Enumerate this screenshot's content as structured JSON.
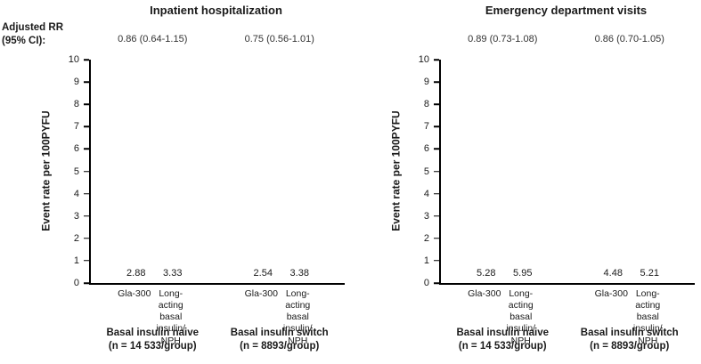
{
  "rr_header": "Adjusted RR\n(95% CI):",
  "colors": {
    "series": [
      "#4FC2E8",
      "#00587F"
    ],
    "axis": "#000000"
  },
  "chart_data": [
    {
      "type": "bar",
      "title": "Inpatient hospitalization",
      "ylabel": "Event rate per 100PYFU",
      "ylim": [
        0,
        10
      ],
      "yticks": [
        0,
        1,
        2,
        3,
        4,
        5,
        6,
        7,
        8,
        9,
        10
      ],
      "series": [
        "Gla-300",
        "Long-acting\nbasal insulin/\nNPH"
      ],
      "rr": [
        "0.86 (0.64-1.15)",
        "0.75 (0.56-1.01)"
      ],
      "groups": [
        {
          "name": "Basal insulin naive",
          "n_label": "(n = 14 533/group)",
          "values": [
            2.88,
            3.33
          ]
        },
        {
          "name": "Basal insulin switch",
          "n_label": "(n = 8893/group)",
          "values": [
            2.54,
            3.38
          ]
        }
      ]
    },
    {
      "type": "bar",
      "title": "Emergency department visits",
      "ylabel": "Event rate per 100PYFU",
      "ylim": [
        0,
        10
      ],
      "yticks": [
        0,
        1,
        2,
        3,
        4,
        5,
        6,
        7,
        8,
        9,
        10
      ],
      "series": [
        "Gla-300",
        "Long-acting\nbasal insulin/\nNPH"
      ],
      "rr": [
        "0.89 (0.73-1.08)",
        "0.86 (0.70-1.05)"
      ],
      "groups": [
        {
          "name": "Basal insulin naive",
          "n_label": "(n = 14 533/group)",
          "values": [
            5.28,
            5.95
          ]
        },
        {
          "name": "Basal insulin switch",
          "n_label": "(n = 8893/group)",
          "values": [
            4.48,
            5.21
          ]
        }
      ]
    }
  ]
}
